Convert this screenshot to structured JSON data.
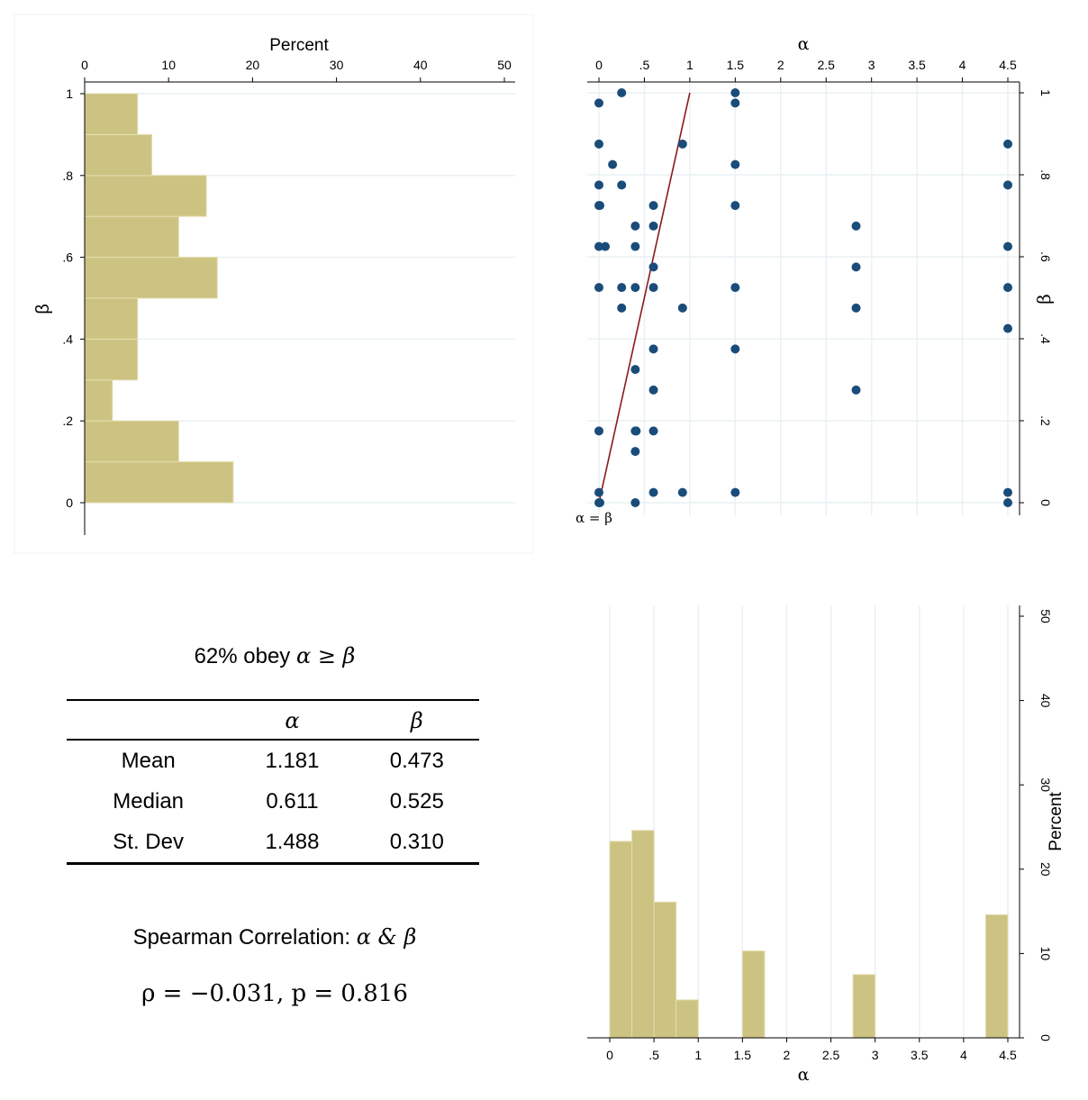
{
  "colors": {
    "bar_fill": "#ccc382",
    "bar_edge": "#e3dcae",
    "dot": "#1a4c7a",
    "line": "#8b1a1a",
    "grid": "#eaf0f4",
    "axis": "#000000"
  },
  "chart_data": [
    {
      "type": "bar",
      "orientation": "horizontal",
      "panel": "top-left",
      "xlabel": "Percent",
      "ylabel": "β",
      "xlim": [
        0,
        50
      ],
      "ylim": [
        0,
        1
      ],
      "xticks": [
        {
          "v": 0,
          "label": "0"
        },
        {
          "v": 10,
          "label": "10"
        },
        {
          "v": 20,
          "label": "20"
        },
        {
          "v": 30,
          "label": "30"
        },
        {
          "v": 40,
          "label": "40"
        },
        {
          "v": 50,
          "label": "50"
        }
      ],
      "yticks": [
        {
          "v": 0,
          "label": "0"
        },
        {
          "v": 0.2,
          "label": ".2"
        },
        {
          "v": 0.4,
          "label": ".4"
        },
        {
          "v": 0.6,
          "label": ".6"
        },
        {
          "v": 0.8,
          "label": ".8"
        },
        {
          "v": 1,
          "label": "1"
        }
      ],
      "bin_edges": [
        0,
        0.1,
        0.2,
        0.3,
        0.4,
        0.5,
        0.6,
        0.7,
        0.8,
        0.9,
        1.0
      ],
      "values": [
        17.7,
        11.2,
        3.3,
        6.3,
        6.3,
        15.8,
        11.2,
        14.5,
        8.0,
        6.3
      ]
    },
    {
      "type": "scatter",
      "panel": "top-right",
      "xlabel": "α",
      "ylabel": "β",
      "xlim": [
        0,
        4.5
      ],
      "ylim": [
        0,
        1
      ],
      "xticks": [
        {
          "v": 0,
          "label": "0"
        },
        {
          "v": 0.5,
          "label": ".5"
        },
        {
          "v": 1,
          "label": "1"
        },
        {
          "v": 1.5,
          "label": "1.5"
        },
        {
          "v": 2,
          "label": "2"
        },
        {
          "v": 2.5,
          "label": "2.5"
        },
        {
          "v": 3,
          "label": "3"
        },
        {
          "v": 3.5,
          "label": "3.5"
        },
        {
          "v": 4,
          "label": "4"
        },
        {
          "v": 4.5,
          "label": "4.5"
        }
      ],
      "yticks": [
        {
          "v": 0,
          "label": "0"
        },
        {
          "v": 0.2,
          "label": ".2"
        },
        {
          "v": 0.4,
          "label": ".4"
        },
        {
          "v": 0.6,
          "label": ".6"
        },
        {
          "v": 0.8,
          "label": ".8"
        },
        {
          "v": 1,
          "label": "1"
        }
      ],
      "line_label": "α = β",
      "line": {
        "x": [
          0,
          1
        ],
        "y": [
          0,
          1
        ]
      },
      "points": [
        [
          0.25,
          1.0
        ],
        [
          1.5,
          1.0
        ],
        [
          0,
          0.975
        ],
        [
          1.5,
          0.975
        ],
        [
          0,
          0.875
        ],
        [
          0.92,
          0.875
        ],
        [
          4.5,
          0.875
        ],
        [
          0.15,
          0.825
        ],
        [
          1.5,
          0.825
        ],
        [
          0,
          0.775
        ],
        [
          0.25,
          0.775
        ],
        [
          4.5,
          0.775
        ],
        [
          0,
          0.725
        ],
        [
          0.01,
          0.725
        ],
        [
          0.6,
          0.725
        ],
        [
          1.5,
          0.725
        ],
        [
          0.4,
          0.675
        ],
        [
          0.6,
          0.675
        ],
        [
          2.83,
          0.675
        ],
        [
          0,
          0.625
        ],
        [
          0.07,
          0.625
        ],
        [
          0.4,
          0.625
        ],
        [
          4.5,
          0.625
        ],
        [
          0.6,
          0.575
        ],
        [
          2.83,
          0.575
        ],
        [
          0,
          0.525
        ],
        [
          0.25,
          0.525
        ],
        [
          0.4,
          0.525
        ],
        [
          0.6,
          0.525
        ],
        [
          1.5,
          0.525
        ],
        [
          4.5,
          0.525
        ],
        [
          0.25,
          0.475
        ],
        [
          0.92,
          0.475
        ],
        [
          2.83,
          0.475
        ],
        [
          4.5,
          0.425
        ],
        [
          0.6,
          0.375
        ],
        [
          1.5,
          0.375
        ],
        [
          0.4,
          0.325
        ],
        [
          0.6,
          0.275
        ],
        [
          2.83,
          0.275
        ],
        [
          0,
          0.175
        ],
        [
          0.4,
          0.175
        ],
        [
          0.41,
          0.175
        ],
        [
          0.6,
          0.175
        ],
        [
          0.4,
          0.125
        ],
        [
          0,
          0.025
        ],
        [
          0.6,
          0.025
        ],
        [
          0.92,
          0.025
        ],
        [
          1.5,
          0.025
        ],
        [
          4.5,
          0.025
        ],
        [
          0,
          0.0
        ],
        [
          0.01,
          0.0
        ],
        [
          0.4,
          0.0
        ],
        [
          4.5,
          0.0
        ]
      ]
    },
    {
      "type": "bar",
      "orientation": "vertical",
      "panel": "bottom-right",
      "xlabel": "α",
      "ylabel": "Percent",
      "xlim": [
        0,
        4.5
      ],
      "ylim": [
        0,
        50
      ],
      "xticks": [
        {
          "v": 0,
          "label": "0"
        },
        {
          "v": 0.5,
          "label": ".5"
        },
        {
          "v": 1,
          "label": "1"
        },
        {
          "v": 1.5,
          "label": "1.5"
        },
        {
          "v": 2,
          "label": "2"
        },
        {
          "v": 2.5,
          "label": "2.5"
        },
        {
          "v": 3,
          "label": "3"
        },
        {
          "v": 3.5,
          "label": "3.5"
        },
        {
          "v": 4,
          "label": "4"
        },
        {
          "v": 4.5,
          "label": "4.5"
        }
      ],
      "yticks": [
        {
          "v": 0,
          "label": "0"
        },
        {
          "v": 10,
          "label": "10"
        },
        {
          "v": 20,
          "label": "20"
        },
        {
          "v": 30,
          "label": "30"
        },
        {
          "v": 40,
          "label": "40"
        },
        {
          "v": 50,
          "label": "50"
        }
      ],
      "bins": [
        {
          "x0": 0,
          "x1": 0.25,
          "value": 23.3
        },
        {
          "x0": 0.25,
          "x1": 0.5,
          "value": 24.6
        },
        {
          "x0": 0.5,
          "x1": 0.75,
          "value": 16.1
        },
        {
          "x0": 0.75,
          "x1": 1.0,
          "value": 4.5
        },
        {
          "x0": 1.5,
          "x1": 1.75,
          "value": 10.3
        },
        {
          "x0": 2.75,
          "x1": 3.0,
          "value": 7.5
        },
        {
          "x0": 4.25,
          "x1": 4.5,
          "value": 14.6
        }
      ]
    }
  ],
  "stats": {
    "obey_prefix": "62% obey ",
    "obey_math": "α ≥ β",
    "col_alpha": "α",
    "col_beta": "β",
    "rows": [
      {
        "label": "Mean",
        "alpha": "1.181",
        "beta": "0.473"
      },
      {
        "label": "Median",
        "alpha": "0.611",
        "beta": "0.525"
      },
      {
        "label": "St. Dev",
        "alpha": "1.488",
        "beta": "0.310"
      }
    ],
    "spearman_prefix": "Spearman Correlation: ",
    "spearman_math": "α & β",
    "rho": "ρ = −0.031, p = 0.816"
  }
}
